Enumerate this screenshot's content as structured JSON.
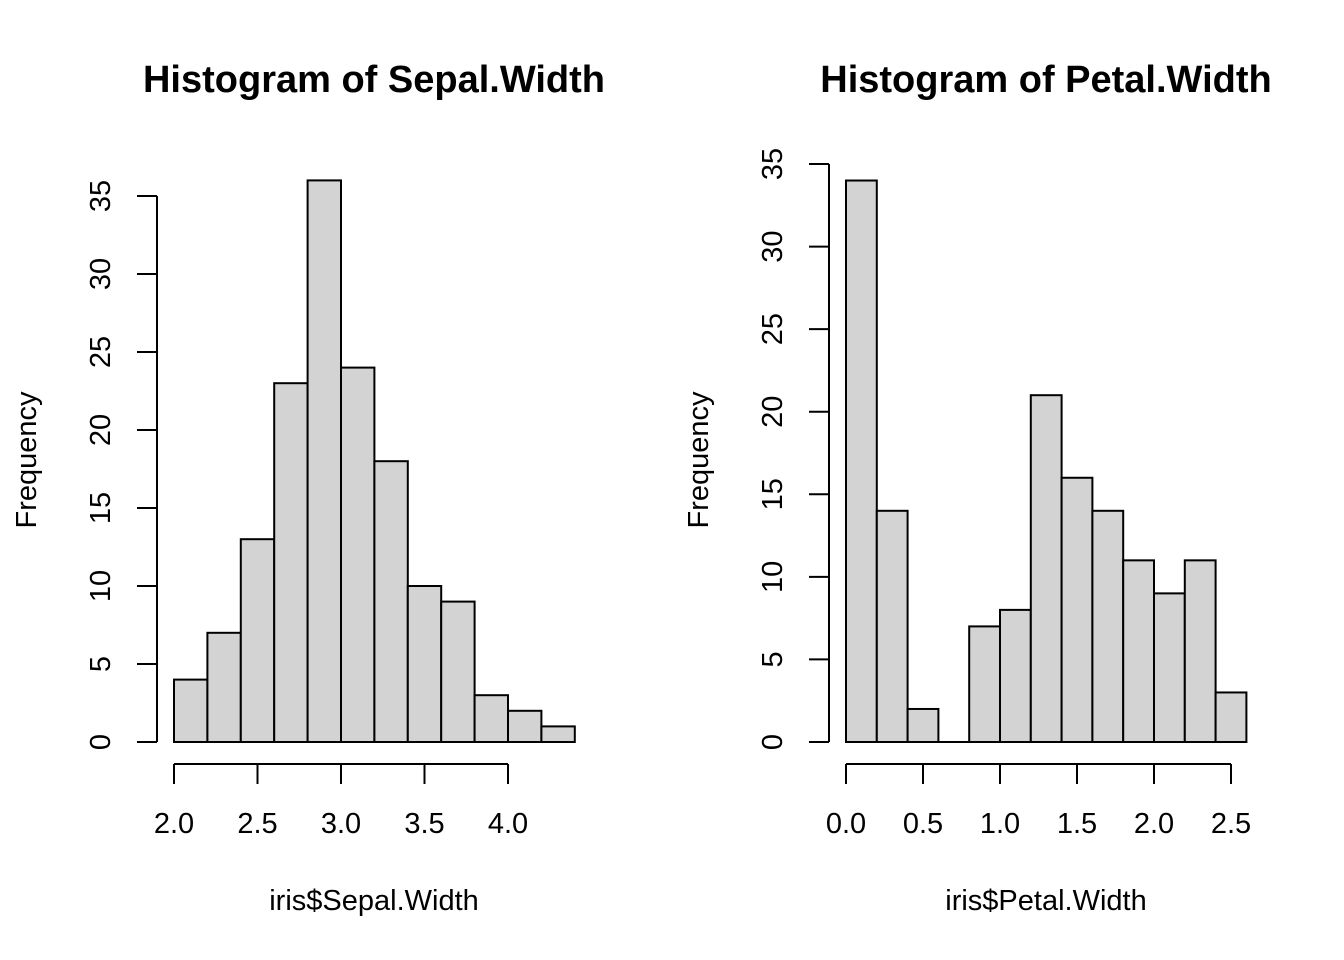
{
  "chart_data": [
    {
      "type": "bar",
      "title": "Histogram of Sepal.Width",
      "xlabel": "iris$Sepal.Width",
      "ylabel": "Frequency",
      "bar_color": "#d3d3d3",
      "bin_edges": [
        2.0,
        2.2,
        2.4,
        2.6,
        2.8,
        3.0,
        3.2,
        3.4,
        3.6,
        3.8,
        4.0,
        4.2,
        4.4
      ],
      "values": [
        4,
        7,
        13,
        23,
        36,
        24,
        18,
        10,
        9,
        3,
        2,
        1
      ],
      "x_ticks": [
        2.0,
        2.5,
        3.0,
        3.5,
        4.0
      ],
      "x_tick_labels": [
        "2.0",
        "2.5",
        "3.0",
        "3.5",
        "4.0"
      ],
      "y_ticks": [
        0,
        5,
        10,
        15,
        20,
        25,
        30,
        35
      ],
      "y_tick_labels": [
        "0",
        "5",
        "10",
        "15",
        "20",
        "25",
        "30",
        "35"
      ],
      "xlim": [
        2.0,
        4.4
      ],
      "ylim": [
        0,
        36
      ]
    },
    {
      "type": "bar",
      "title": "Histogram of Petal.Width",
      "xlabel": "iris$Petal.Width",
      "ylabel": "Frequency",
      "bar_color": "#d3d3d3",
      "bin_edges": [
        0.0,
        0.2,
        0.4,
        0.6,
        0.8,
        1.0,
        1.2,
        1.4,
        1.6,
        1.8,
        2.0,
        2.2,
        2.4,
        2.6
      ],
      "values": [
        34,
        14,
        2,
        0,
        7,
        8,
        21,
        16,
        14,
        11,
        9,
        11,
        3
      ],
      "x_ticks": [
        0.0,
        0.5,
        1.0,
        1.5,
        2.0,
        2.5
      ],
      "x_tick_labels": [
        "0.0",
        "0.5",
        "1.0",
        "1.5",
        "2.0",
        "2.5"
      ],
      "y_ticks": [
        0,
        5,
        10,
        15,
        20,
        25,
        30,
        35
      ],
      "y_tick_labels": [
        "0",
        "5",
        "10",
        "15",
        "20",
        "25",
        "30",
        "35"
      ],
      "xlim": [
        0.0,
        2.6
      ],
      "ylim": [
        0,
        35
      ]
    }
  ]
}
